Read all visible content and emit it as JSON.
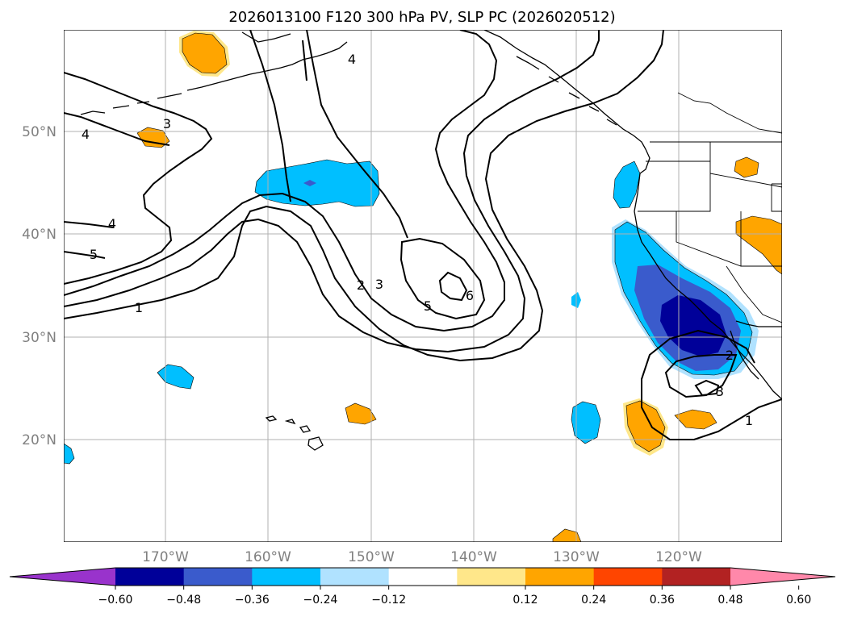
{
  "title": "2026013100 F120 300 hPa PV, SLP PC (2026020512)",
  "lat_labels": [
    "50°N",
    "40°N",
    "30°N",
    "20°N"
  ],
  "lon_labels": [
    "170°W",
    "160°W",
    "150°W",
    "140°W",
    "130°W",
    "120°W"
  ],
  "colorbar": {
    "tick_labels": [
      "−0.60",
      "−0.48",
      "−0.36",
      "−0.24",
      "−0.12",
      "0.12",
      "0.24",
      "0.36",
      "0.48",
      "0.60"
    ],
    "colors": [
      "#9933cc",
      "#000099",
      "#3a5bcc",
      "#00bfff",
      "#b0e2ff",
      "#ffffff",
      "#ffe78a",
      "#ffa500",
      "#ff4500",
      "#b22222",
      "#ff88aa"
    ]
  },
  "contour_labels": [
    "1",
    "2",
    "3",
    "4",
    "5",
    "6",
    "3",
    "4",
    "4",
    "5",
    "1",
    "2",
    "3"
  ]
}
